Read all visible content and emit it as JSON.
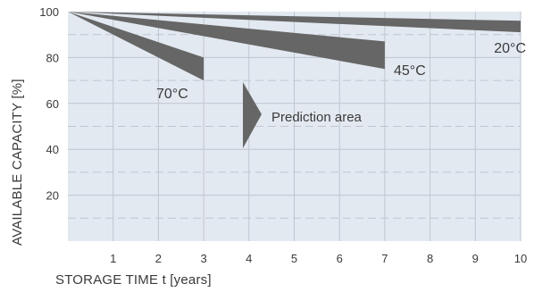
{
  "chart_data": {
    "type": "area",
    "xlabel": "STORAGE TIME t [years]",
    "ylabel": "AVAILABLE CAPACITY [%]",
    "xlim": [
      0,
      10
    ],
    "ylim": [
      0,
      100
    ],
    "x_ticks": [
      1,
      2,
      3,
      4,
      5,
      6,
      7,
      8,
      9,
      10
    ],
    "y_ticks": [
      20,
      40,
      60,
      80,
      100
    ],
    "grid": true,
    "series": [
      {
        "name": "70°C",
        "x_end": 3,
        "upper_end": 80,
        "lower_end": 70,
        "start": [
          0,
          100
        ],
        "color": "#666666"
      },
      {
        "name": "45°C",
        "x_end": 7,
        "upper_end": 87,
        "lower_end": 75,
        "start": [
          0,
          100
        ],
        "color": "#666666"
      },
      {
        "name": "20°C",
        "x_end": 10,
        "upper_end": 96,
        "lower_end": 91,
        "start": [
          0,
          100
        ],
        "color": "#666666"
      }
    ],
    "annotations": [
      {
        "text": "Prediction area",
        "x": 4.5,
        "y": 55
      }
    ],
    "colors": {
      "plot_background": "#e3e9f1",
      "grid": "#bfc6cf",
      "band": "#666666",
      "text": "#3a3a3a"
    }
  }
}
